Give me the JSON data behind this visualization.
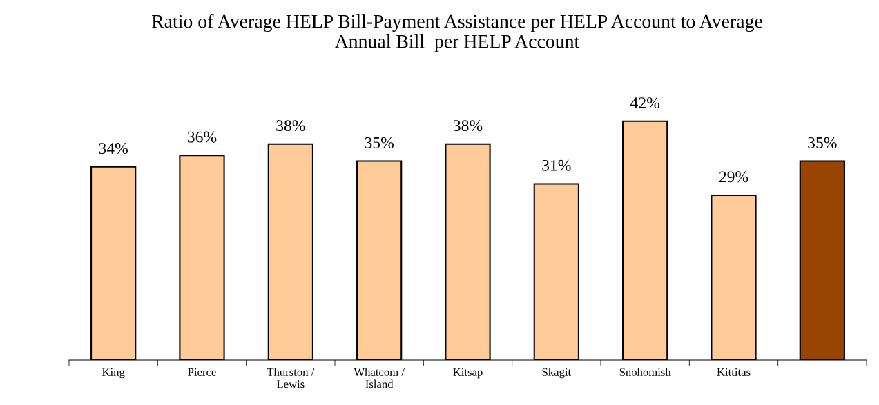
{
  "chart_data": {
    "type": "bar",
    "title": "Ratio of Average HELP Bill-Payment Assistance per HELP Account to Average\nAnnual Bill  per HELP Account",
    "categories": [
      "King",
      "Pierce",
      "Thurston /\nLewis",
      "Whatcom /\nIsland",
      "Kitsap",
      "Skagit",
      "Snohomish",
      "Kittitas",
      null
    ],
    "values": [
      34,
      36,
      38,
      35,
      38,
      31,
      42,
      29,
      35
    ],
    "value_labels": [
      "34%",
      "36%",
      "38%",
      "35%",
      "38%",
      "31%",
      "42%",
      "29%",
      "35%"
    ],
    "colors": [
      "#ffcc99",
      "#ffcc99",
      "#ffcc99",
      "#ffcc99",
      "#ffcc99",
      "#ffcc99",
      "#ffcc99",
      "#ffcc99",
      "#994400"
    ],
    "grid": false,
    "legend": false
  }
}
